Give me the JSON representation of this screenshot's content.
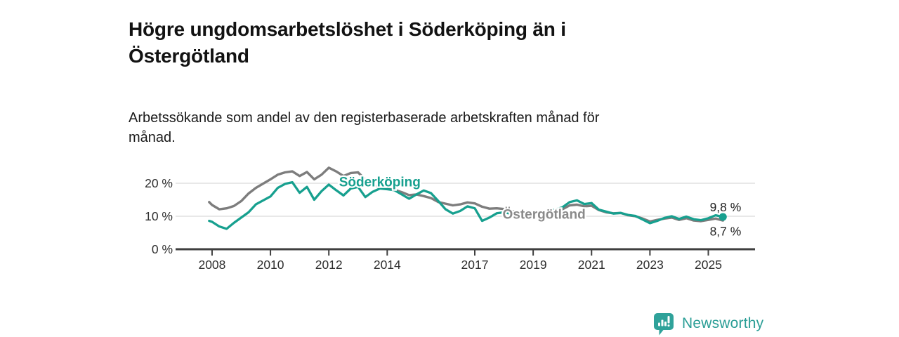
{
  "header": {
    "title": "Högre ungdomsarbetslöshet i Söderköping än i Östergötland",
    "subtitle": "Arbetssökande som andel av den registerbaserade arbetskraften månad för månad."
  },
  "footer": {
    "brand": "Newsworthy",
    "logo_icon": "bar-chart-speech-bubble-icon"
  },
  "colors": {
    "background": "#ffffff",
    "title_text": "#121212",
    "axis": "#3f3f3f",
    "grid": "#d9d9d9",
    "tick_text": "#2e2e2e",
    "soderkoping_teal": "#17A08F",
    "ostergotland_gray": "#7d7d7d",
    "value_label_text": "#1f1f1f",
    "brand_teal": "#2B9E96"
  },
  "chart_data": {
    "type": "line",
    "title": "Högre ungdomsarbetslöshet i Söderköping än i Östergötland",
    "subtitle": "Arbetssökande som andel av den registerbaserade arbetskraften månad för månad.",
    "xlabel": "",
    "ylabel": "",
    "xlim": [
      2006.75,
      2026.6
    ],
    "ylim": [
      0,
      27
    ],
    "grid": "horizontal-only",
    "gridlines": [
      10,
      20
    ],
    "legend_position": "inline-labels",
    "x": [
      2007.9,
      2008,
      2008.25,
      2008.5,
      2008.75,
      2009,
      2009.25,
      2009.5,
      2009.75,
      2010,
      2010.25,
      2010.5,
      2010.75,
      2011,
      2011.25,
      2011.5,
      2011.75,
      2012,
      2012.25,
      2012.5,
      2012.75,
      2013,
      2013.25,
      2013.5,
      2013.75,
      2014,
      2014.25,
      2014.5,
      2014.75,
      2015,
      2015.25,
      2015.5,
      2015.75,
      2016,
      2016.25,
      2016.5,
      2016.75,
      2017,
      2017.25,
      2017.5,
      2017.75,
      2018,
      2018.25,
      2018.5,
      2018.75,
      2019,
      2019.25,
      2019.5,
      2019.75,
      2020,
      2020.25,
      2020.5,
      2020.75,
      2021,
      2021.25,
      2021.5,
      2021.75,
      2022,
      2022.25,
      2022.5,
      2022.75,
      2023,
      2023.25,
      2023.5,
      2023.75,
      2024,
      2024.25,
      2024.5,
      2024.75,
      2025,
      2025.25,
      2025.5
    ],
    "series": [
      {
        "name": "Söderköping",
        "color": "#17A08F",
        "stroke_width": 3.3,
        "end_marker": true,
        "end_label": "9,8 %",
        "last_value": 9.8,
        "values": [
          8.6,
          8.3,
          6.9,
          6.2,
          8,
          9.6,
          11.2,
          13.6,
          14.8,
          16,
          18.6,
          19.8,
          20.3,
          17.1,
          18.9,
          15,
          17.6,
          19.6,
          17.9,
          16.3,
          18.4,
          18.9,
          15.8,
          17.4,
          18.4,
          18.2,
          17.9,
          16.6,
          15.3,
          16.6,
          17.8,
          17,
          14.6,
          12.1,
          10.8,
          11.6,
          13,
          12.4,
          8.6,
          9.6,
          10.9,
          11.2,
          10.7,
          9.8,
          11.2,
          11,
          11.3,
          11.6,
          12,
          12.7,
          14.3,
          14.8,
          13.7,
          14,
          12,
          11.4,
          10.8,
          11,
          10.4,
          10.1,
          9,
          7.9,
          8.6,
          9.5,
          10,
          9.2,
          9.9,
          9.1,
          8.8,
          9.4,
          10.3,
          9.8
        ]
      },
      {
        "name": "Östergötland",
        "color": "#7d7d7d",
        "stroke_width": 3.4,
        "end_marker": false,
        "end_label": "8,7 %",
        "last_value": 8.7,
        "values": [
          14.3,
          13.4,
          12.1,
          12.4,
          13.1,
          14.6,
          16.9,
          18.6,
          19.9,
          21.2,
          22.6,
          23.3,
          23.6,
          22.2,
          23.4,
          21.2,
          22.6,
          24.7,
          23.6,
          22.2,
          23.1,
          23.3,
          21.1,
          19.6,
          18.6,
          18.3,
          18,
          17.3,
          16.4,
          16.6,
          16.1,
          15.5,
          14.3,
          13.8,
          13.3,
          13.6,
          14.2,
          13.9,
          12.9,
          12.3,
          12.4,
          12.2,
          11.6,
          11.3,
          11.5,
          11.2,
          11.4,
          11.5,
          11.8,
          12.1,
          13.3,
          13.5,
          13,
          13.2,
          11.9,
          11.2,
          10.9,
          11,
          10.3,
          10,
          9.3,
          8.4,
          8.9,
          9.3,
          9.6,
          8.9,
          9.4,
          8.7,
          8.5,
          8.9,
          9.3,
          8.7
        ]
      }
    ],
    "yticks": [
      {
        "value": 0,
        "label": "0 %"
      },
      {
        "value": 10,
        "label": "10 %"
      },
      {
        "value": 20,
        "label": "20 %"
      }
    ],
    "xticks": [
      {
        "value": 2008,
        "label": "2008"
      },
      {
        "value": 2010,
        "label": "2010"
      },
      {
        "value": 2012,
        "label": "2012"
      },
      {
        "value": 2014,
        "label": "2014"
      },
      {
        "value": 2017,
        "label": "2017"
      },
      {
        "value": 2019,
        "label": "2019"
      },
      {
        "value": 2021,
        "label": "2021"
      },
      {
        "value": 2023,
        "label": "2023"
      },
      {
        "value": 2025,
        "label": "2025"
      }
    ],
    "annotations": [
      {
        "text": "Söderköping",
        "x": 2012.35,
        "y": 19.0,
        "color": "#17A08F",
        "bold": true,
        "halo": true
      },
      {
        "text": "Östergötland",
        "x": 2017.95,
        "y": 9.3,
        "color": "#8a8a8a",
        "bold": true,
        "halo": true
      },
      {
        "text": "9,8 %",
        "x": 2025.05,
        "y": 11.5,
        "color": "#1f1f1f",
        "bold": false,
        "halo": false
      },
      {
        "text": "8,7 %",
        "x": 2025.05,
        "y": 4.2,
        "color": "#1f1f1f",
        "bold": false,
        "halo": false
      }
    ]
  }
}
